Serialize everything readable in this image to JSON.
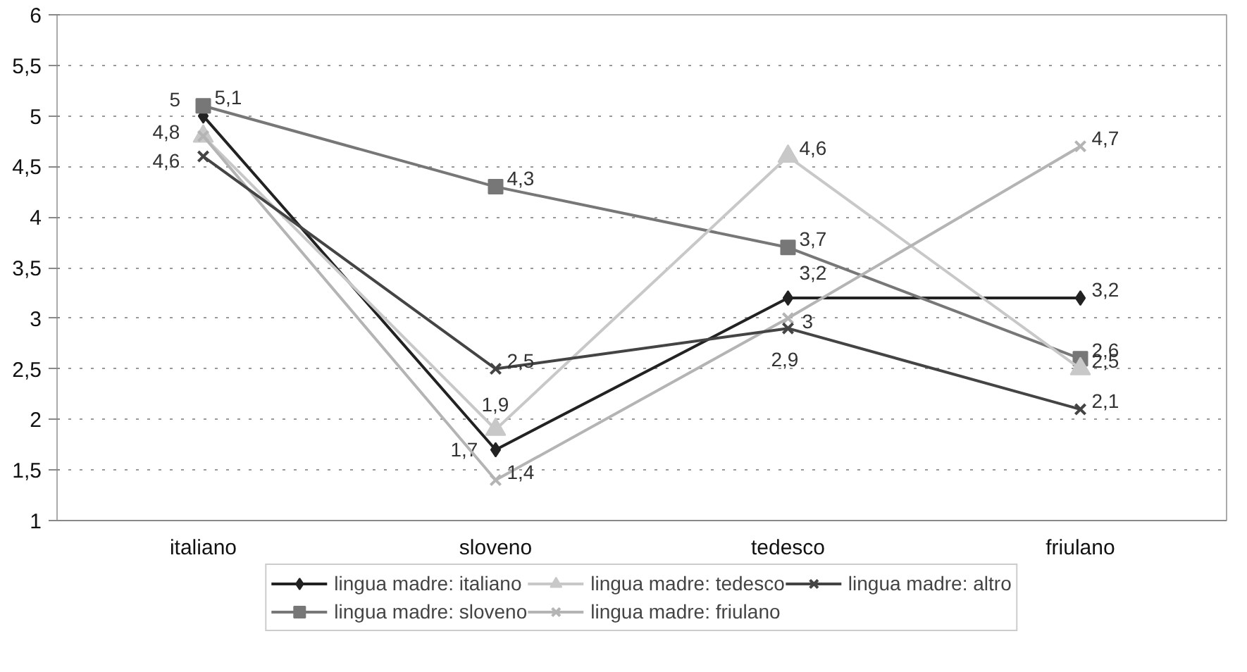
{
  "chart_data": {
    "type": "line",
    "categories": [
      "italiano",
      "sloveno",
      "tedesco",
      "friulano"
    ],
    "ylim": [
      1,
      6
    ],
    "yticks": [
      1,
      {
        "value": 1.5,
        "label": "1,5"
      },
      2,
      {
        "value": 2.5,
        "label": "2,5"
      },
      3,
      {
        "value": 3.5,
        "label": "3,5"
      },
      4,
      {
        "value": 4.5,
        "label": "4,5"
      },
      5,
      {
        "value": 5.5,
        "label": "5,5"
      },
      6
    ],
    "grid": "y",
    "legend": "bottom",
    "series": [
      {
        "name": "lingua madre: italiano",
        "color": "#222222",
        "marker": "diamond",
        "values": [
          5,
          1.7,
          3.2,
          3.2
        ],
        "value_labels": [
          "5",
          "1,7",
          "3,2",
          "3,2"
        ]
      },
      {
        "name": "lingua madre: sloveno",
        "color": "#777777",
        "marker": "square",
        "values": [
          5.1,
          4.3,
          3.7,
          2.6
        ],
        "value_labels": [
          "5,1",
          "4,3",
          "3,7",
          "2,6"
        ]
      },
      {
        "name": "lingua madre: tedesco",
        "color": "#c8c8c8",
        "marker": "triangle",
        "values": [
          4.8,
          1.9,
          4.6,
          2.5
        ],
        "value_labels": [
          null,
          "1,9",
          "4,6",
          "2,5"
        ]
      },
      {
        "name": "lingua madre: friulano",
        "color": "#b4b4b4",
        "marker": "cross",
        "values": [
          4.8,
          1.4,
          3,
          4.7
        ],
        "value_labels": [
          "4,8",
          "1,4",
          "3",
          "4,7"
        ]
      },
      {
        "name": "lingua madre: altro",
        "color": "#444444",
        "marker": "cross",
        "values": [
          4.6,
          2.5,
          2.9,
          2.1
        ],
        "value_labels": [
          "4,6",
          "2,5",
          "2,9",
          "2,1"
        ]
      }
    ]
  }
}
